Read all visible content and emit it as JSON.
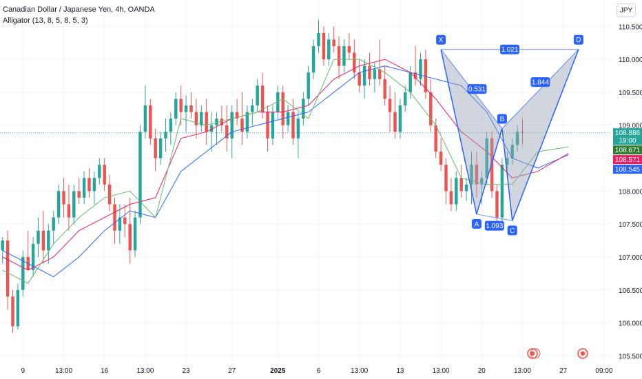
{
  "header": {
    "symbol_title": "Canadian Dollar / Japanese Yen, 4h, OANDA",
    "indicator_title": "Alligator (13, 8, 5, 8, 5, 3)",
    "currency_button": "JPY"
  },
  "colors": {
    "up": "#26a69a",
    "down": "#ef5350",
    "jaw": "#2962ff",
    "teeth": "#e91e63",
    "lips": "#66bb6a",
    "pattern": "#2962ff",
    "pattern_fill": "#9aa3b5",
    "price_line": "#26a69a"
  },
  "chart_data": {
    "type": "candlestick",
    "title": "Canadian Dollar / Japanese Yen, 4h, OANDA",
    "y_axis": {
      "ticks": [
        "110.500",
        "110.000",
        "109.500",
        "109.000",
        "108.500",
        "108.000",
        "107.500",
        "107.000",
        "106.500",
        "106.000",
        "105.500"
      ],
      "ylim": [
        105.4,
        110.9
      ]
    },
    "x_axis": {
      "ticks": [
        {
          "label": "9",
          "i": 4
        },
        {
          "label": "13:00",
          "i": 12
        },
        {
          "label": "16",
          "i": 20
        },
        {
          "label": "13:00",
          "i": 28
        },
        {
          "label": "23",
          "i": 36
        },
        {
          "label": "27",
          "i": 45
        },
        {
          "label": "2025",
          "i": 54
        },
        {
          "label": "6",
          "i": 62
        },
        {
          "label": "13:00",
          "i": 70
        },
        {
          "label": "13",
          "i": 78
        },
        {
          "label": "13:00",
          "i": 86
        },
        {
          "label": "20",
          "i": 94
        },
        {
          "label": "13:00",
          "i": 102
        },
        {
          "label": "27",
          "i": 110
        },
        {
          "label": "09:00",
          "i": 118
        }
      ]
    },
    "candles": [
      [
        107.1,
        107.3,
        106.9,
        107.25
      ],
      [
        107.25,
        107.4,
        106.2,
        106.4
      ],
      [
        106.4,
        106.5,
        105.85,
        105.95
      ],
      [
        105.95,
        106.6,
        105.9,
        106.5
      ],
      [
        106.5,
        107.1,
        106.4,
        107.0
      ],
      [
        107.0,
        107.4,
        106.8,
        106.8
      ],
      [
        106.8,
        107.3,
        106.7,
        107.2
      ],
      [
        107.2,
        107.6,
        107.0,
        107.4
      ],
      [
        107.4,
        107.7,
        106.9,
        107.1
      ],
      [
        107.1,
        107.5,
        106.9,
        107.4
      ],
      [
        107.4,
        107.7,
        107.2,
        107.6
      ],
      [
        107.6,
        108.1,
        107.5,
        108.0
      ],
      [
        108.0,
        108.2,
        107.6,
        107.8
      ],
      [
        107.8,
        108.1,
        107.4,
        107.6
      ],
      [
        107.6,
        108.1,
        107.5,
        108.0
      ],
      [
        108.0,
        108.2,
        107.8,
        107.9
      ],
      [
        107.9,
        108.3,
        107.8,
        108.2
      ],
      [
        108.2,
        108.35,
        107.9,
        108.0
      ],
      [
        108.0,
        108.3,
        107.8,
        108.2
      ],
      [
        108.2,
        108.5,
        108.1,
        108.4
      ],
      [
        108.4,
        108.5,
        108.0,
        108.1
      ],
      [
        108.1,
        108.25,
        107.7,
        107.8
      ],
      [
        107.8,
        107.9,
        107.2,
        107.4
      ],
      [
        107.4,
        107.8,
        107.2,
        107.6
      ],
      [
        107.6,
        107.8,
        107.3,
        107.5
      ],
      [
        107.5,
        107.9,
        106.9,
        107.1
      ],
      [
        107.1,
        107.7,
        107.0,
        107.6
      ],
      [
        107.6,
        109.0,
        107.5,
        108.9
      ],
      [
        108.9,
        109.6,
        108.8,
        109.3
      ],
      [
        109.3,
        109.4,
        108.7,
        108.8
      ],
      [
        108.8,
        108.95,
        108.3,
        108.5
      ],
      [
        108.5,
        108.9,
        108.4,
        108.8
      ],
      [
        108.8,
        109.1,
        108.6,
        108.9
      ],
      [
        108.9,
        109.2,
        108.7,
        109.1
      ],
      [
        109.1,
        109.5,
        109.0,
        109.4
      ],
      [
        109.4,
        109.6,
        109.0,
        109.2
      ],
      [
        109.2,
        109.45,
        108.9,
        109.3
      ],
      [
        109.3,
        109.5,
        109.1,
        109.2
      ],
      [
        109.2,
        109.4,
        108.8,
        109.0
      ],
      [
        109.0,
        109.3,
        108.9,
        109.2
      ],
      [
        109.2,
        109.4,
        108.7,
        108.9
      ],
      [
        108.9,
        109.2,
        108.6,
        109.0
      ],
      [
        109.0,
        109.2,
        108.7,
        109.1
      ],
      [
        109.1,
        109.3,
        108.9,
        109.0
      ],
      [
        109.0,
        109.3,
        108.6,
        108.8
      ],
      [
        108.8,
        109.3,
        108.5,
        109.2
      ],
      [
        109.2,
        109.4,
        109.0,
        109.1
      ],
      [
        109.1,
        109.5,
        108.7,
        108.9
      ],
      [
        108.9,
        109.3,
        108.8,
        109.2
      ],
      [
        109.2,
        109.4,
        109.0,
        109.3
      ],
      [
        109.3,
        109.7,
        109.2,
        109.6
      ],
      [
        109.6,
        109.8,
        109.1,
        109.2
      ],
      [
        109.2,
        109.3,
        108.6,
        108.8
      ],
      [
        108.8,
        109.3,
        108.7,
        109.2
      ],
      [
        109.2,
        109.6,
        109.1,
        109.5
      ],
      [
        109.5,
        109.6,
        108.8,
        109.0
      ],
      [
        109.0,
        109.3,
        108.9,
        109.2
      ],
      [
        109.2,
        109.4,
        108.7,
        108.8
      ],
      [
        108.8,
        109.2,
        108.5,
        109.1
      ],
      [
        109.1,
        109.5,
        109.0,
        109.4
      ],
      [
        109.4,
        109.9,
        109.3,
        109.8
      ],
      [
        109.8,
        110.3,
        109.7,
        110.2
      ],
      [
        110.2,
        110.6,
        110.1,
        110.4
      ],
      [
        110.4,
        110.5,
        109.9,
        110.0
      ],
      [
        110.0,
        110.4,
        109.9,
        110.3
      ],
      [
        110.3,
        110.5,
        110.1,
        110.2
      ],
      [
        110.2,
        110.35,
        109.7,
        109.9
      ],
      [
        109.9,
        110.3,
        109.8,
        110.2
      ],
      [
        110.2,
        110.4,
        110.0,
        110.1
      ],
      [
        110.1,
        110.3,
        109.7,
        109.8
      ],
      [
        109.8,
        110.0,
        109.5,
        109.6
      ],
      [
        109.6,
        110.0,
        109.4,
        109.9
      ],
      [
        109.9,
        110.1,
        109.6,
        109.7
      ],
      [
        109.7,
        109.95,
        109.5,
        109.85
      ],
      [
        109.85,
        110.3,
        109.6,
        109.7
      ],
      [
        109.7,
        109.9,
        109.3,
        109.4
      ],
      [
        109.4,
        109.6,
        108.9,
        109.2
      ],
      [
        109.2,
        109.5,
        108.8,
        108.9
      ],
      [
        108.9,
        109.4,
        108.8,
        109.3
      ],
      [
        109.3,
        109.6,
        109.2,
        109.5
      ],
      [
        109.5,
        109.9,
        109.4,
        109.8
      ],
      [
        109.8,
        110.2,
        109.6,
        109.7
      ],
      [
        109.7,
        110.1,
        109.6,
        110.0
      ],
      [
        110.0,
        110.15,
        109.4,
        109.5
      ],
      [
        109.5,
        109.7,
        108.9,
        109.0
      ],
      [
        109.0,
        109.1,
        108.5,
        108.6
      ],
      [
        108.6,
        108.8,
        108.3,
        108.4
      ],
      [
        108.4,
        108.5,
        107.8,
        108.0
      ],
      [
        108.0,
        108.2,
        107.7,
        107.8
      ],
      [
        107.8,
        108.3,
        107.7,
        108.2
      ],
      [
        108.2,
        108.4,
        107.9,
        108.0
      ],
      [
        108.0,
        108.2,
        107.85,
        108.1
      ],
      [
        108.1,
        108.6,
        107.8,
        108.4
      ],
      [
        108.4,
        108.6,
        107.9,
        108.1
      ],
      [
        108.1,
        108.3,
        107.8,
        108.2
      ],
      [
        108.2,
        108.9,
        108.1,
        108.8
      ],
      [
        108.8,
        108.9,
        107.9,
        108.0
      ],
      [
        108.0,
        108.1,
        107.4,
        107.6
      ],
      [
        107.6,
        108.5,
        107.5,
        108.4
      ],
      [
        108.4,
        108.6,
        108.2,
        108.5
      ],
      [
        108.5,
        108.8,
        108.4,
        108.7
      ],
      [
        108.7,
        109.0,
        108.6,
        108.9
      ],
      [
        108.9,
        109.1,
        108.7,
        108.886
      ]
    ],
    "alligator": {
      "jaw": [
        [
          0,
          107.1
        ],
        [
          5,
          106.9
        ],
        [
          10,
          106.7
        ],
        [
          15,
          107.0
        ],
        [
          20,
          107.4
        ],
        [
          25,
          107.7
        ],
        [
          30,
          107.6
        ],
        [
          35,
          108.3
        ],
        [
          40,
          108.6
        ],
        [
          45,
          108.9
        ],
        [
          50,
          109.0
        ],
        [
          55,
          109.1
        ],
        [
          60,
          109.2
        ],
        [
          65,
          109.5
        ],
        [
          70,
          109.8
        ],
        [
          75,
          109.9
        ],
        [
          80,
          109.8
        ],
        [
          85,
          109.7
        ],
        [
          90,
          109.6
        ],
        [
          95,
          109.2
        ],
        [
          100,
          108.5
        ],
        [
          105,
          108.35
        ],
        [
          111,
          108.55
        ]
      ],
      "teeth": [
        [
          0,
          107.0
        ],
        [
          5,
          106.8
        ],
        [
          10,
          107.0
        ],
        [
          15,
          107.4
        ],
        [
          20,
          107.6
        ],
        [
          25,
          107.8
        ],
        [
          30,
          107.9
        ],
        [
          35,
          108.8
        ],
        [
          40,
          108.9
        ],
        [
          45,
          109.1
        ],
        [
          50,
          109.2
        ],
        [
          55,
          109.2
        ],
        [
          60,
          109.3
        ],
        [
          65,
          109.7
        ],
        [
          70,
          109.9
        ],
        [
          75,
          110.0
        ],
        [
          80,
          109.8
        ],
        [
          85,
          109.4
        ],
        [
          90,
          108.9
        ],
        [
          95,
          108.6
        ],
        [
          100,
          108.2
        ],
        [
          105,
          108.3
        ],
        [
          111,
          108.57
        ]
      ],
      "lips": [
        [
          0,
          106.8
        ],
        [
          5,
          106.6
        ],
        [
          10,
          107.2
        ],
        [
          15,
          107.6
        ],
        [
          20,
          107.9
        ],
        [
          25,
          108.0
        ],
        [
          30,
          107.6
        ],
        [
          35,
          109.1
        ],
        [
          40,
          109.0
        ],
        [
          45,
          109.1
        ],
        [
          50,
          109.2
        ],
        [
          55,
          109.4
        ],
        [
          60,
          109.1
        ],
        [
          65,
          110.0
        ],
        [
          70,
          110.0
        ],
        [
          75,
          109.8
        ],
        [
          80,
          109.5
        ],
        [
          85,
          109.0
        ],
        [
          90,
          108.2
        ],
        [
          95,
          108.1
        ],
        [
          100,
          108.1
        ],
        [
          105,
          108.6
        ],
        [
          111,
          108.67
        ]
      ]
    },
    "price_labels": [
      {
        "value": 108.886,
        "text": "108.886",
        "sub": "19:00",
        "color": "#26a69a"
      },
      {
        "value": 108.671,
        "text": "108.671",
        "color": "#2e7d32"
      },
      {
        "value": 108.571,
        "text": "108.571",
        "color": "#e91e63"
      },
      {
        "value": 108.545,
        "text": "108.545",
        "color": "#2962ff"
      }
    ],
    "harmonic": {
      "points": [
        {
          "label": "X",
          "i": 86,
          "price": 110.15
        },
        {
          "label": "A",
          "i": 93,
          "price": 107.65
        },
        {
          "label": "B",
          "i": 98,
          "price": 108.95
        },
        {
          "label": "C",
          "i": 100,
          "price": 107.55
        },
        {
          "label": "D",
          "i": 113,
          "price": 110.15
        }
      ],
      "ratios": [
        "1.021",
        "0.531",
        "1.844",
        "1.093"
      ]
    }
  }
}
